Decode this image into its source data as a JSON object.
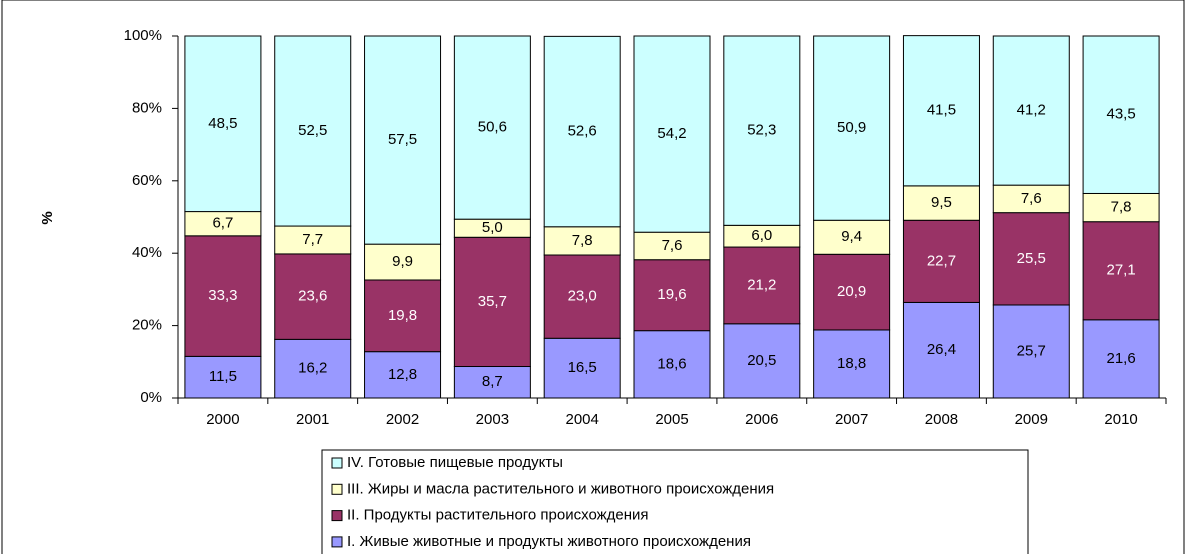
{
  "chart_data": {
    "type": "stacked_bar_percent",
    "y_label": "%",
    "categories": [
      "2000",
      "2001",
      "2002",
      "2003",
      "2004",
      "2005",
      "2006",
      "2007",
      "2008",
      "2009",
      "2010"
    ],
    "series": [
      {
        "name": "I. Живые животные и продукты животного происхождения",
        "color": "#9999ff",
        "values": [
          11.5,
          16.2,
          12.8,
          8.7,
          16.5,
          18.6,
          20.5,
          18.8,
          26.4,
          25.7,
          21.6
        ],
        "value_labels": [
          "11,5",
          "16,2",
          "12,8",
          "8,7",
          "16,5",
          "18,6",
          "20,5",
          "18,8",
          "26,4",
          "25,7",
          "21,6"
        ]
      },
      {
        "name": "II. Продукты растительного происхождения",
        "color": "#993366",
        "values": [
          33.3,
          23.6,
          19.8,
          35.7,
          23.0,
          19.6,
          21.2,
          20.9,
          22.7,
          25.5,
          27.1
        ],
        "value_labels": [
          "33,3",
          "23,6",
          "19,8",
          "35,7",
          "23,0",
          "19,6",
          "21,2",
          "20,9",
          "22,7",
          "25,5",
          "27,1"
        ]
      },
      {
        "name": "III. Жиры и масла растительного и животного происхождения",
        "color": "#ffffcc",
        "values": [
          6.7,
          7.7,
          9.9,
          5.0,
          7.8,
          7.6,
          6.0,
          9.4,
          9.5,
          7.6,
          7.8
        ],
        "value_labels": [
          "6,7",
          "7,7",
          "9,9",
          "5,0",
          "7,8",
          "7,6",
          "6,0",
          "9,4",
          "9,5",
          "7,6",
          "7,8"
        ]
      },
      {
        "name": "IV. Готовые пищевые продукты",
        "color": "#ccffff",
        "values": [
          48.5,
          52.5,
          57.5,
          50.6,
          52.6,
          54.2,
          52.3,
          50.9,
          41.5,
          41.2,
          43.5
        ],
        "value_labels": [
          "48,5",
          "52,5",
          "57,5",
          "50,6",
          "52,6",
          "54,2",
          "52,3",
          "50,9",
          "41,5",
          "41,2",
          "43,5"
        ]
      }
    ],
    "ylim": [
      0,
      100
    ],
    "yticks": [
      {
        "value": 0,
        "label": "0%"
      },
      {
        "value": 20,
        "label": "20%"
      },
      {
        "value": 40,
        "label": "40%"
      },
      {
        "value": 60,
        "label": "60%"
      },
      {
        "value": 80,
        "label": "80%"
      },
      {
        "value": 100,
        "label": "100%"
      }
    ],
    "legend": "bottom",
    "grid": false
  }
}
